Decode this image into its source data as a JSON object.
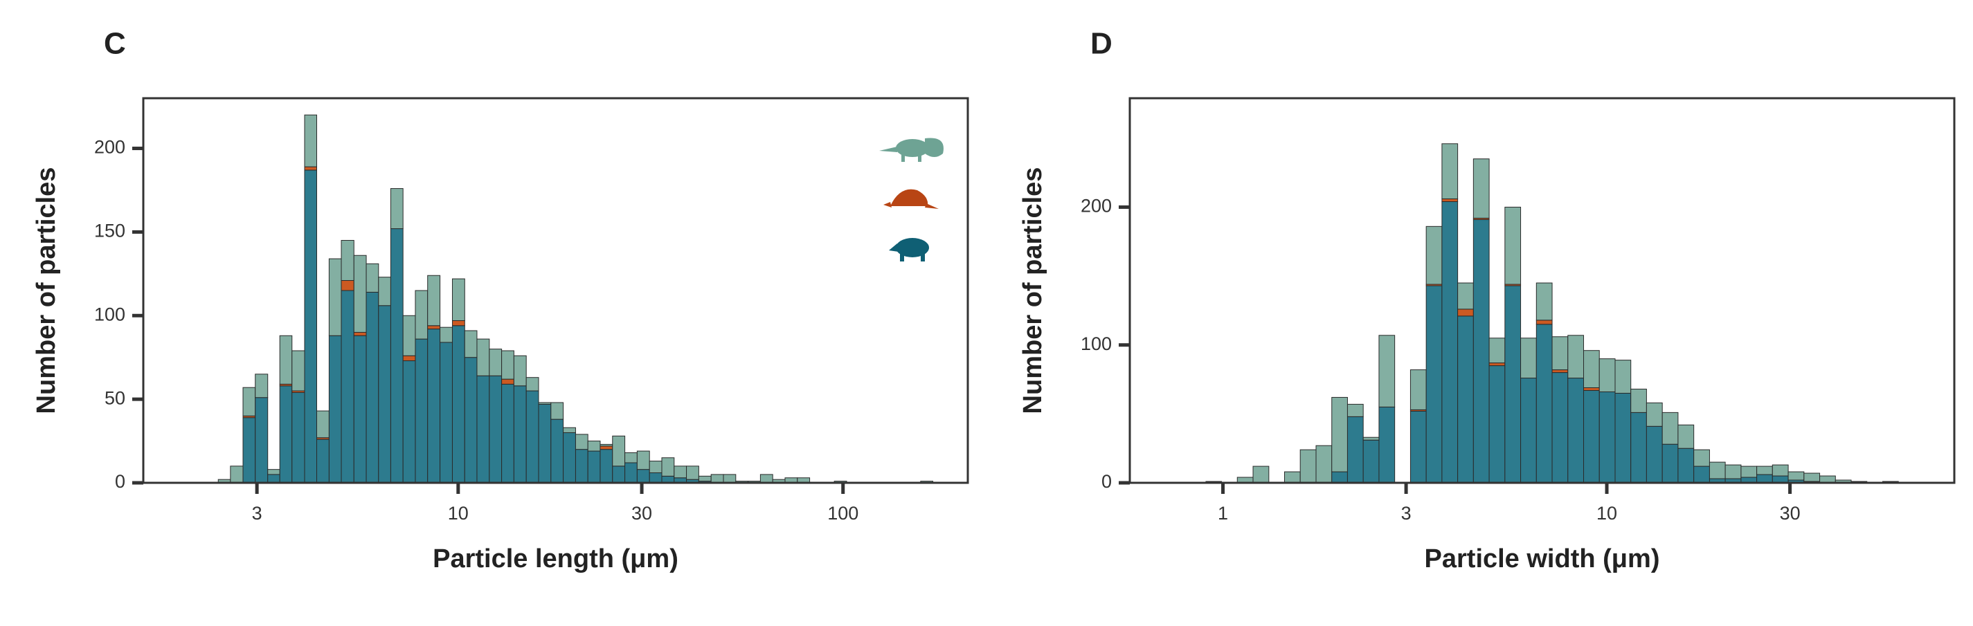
{
  "chart_data": [
    {
      "type": "histogram",
      "label": "C",
      "x_label": "Particle length (μm)",
      "y_label": "Number of particles",
      "log_x": true,
      "xlim": [
        1.52,
        211
      ],
      "ylim": [
        0,
        230
      ],
      "xticks": [
        3,
        10,
        30,
        100
      ],
      "yticks": [
        0,
        50,
        100,
        150,
        200
      ],
      "bins": [
        2.38,
        2.56,
        2.76,
        2.97,
        3.2,
        3.44,
        3.7,
        3.99,
        4.29,
        4.62,
        4.97,
        5.36,
        5.77,
        6.21,
        6.68,
        7.19,
        7.74,
        8.33,
        8.97,
        9.66,
        10.4,
        11.19,
        12.05,
        12.97,
        13.96,
        15.03,
        16.18,
        17.42,
        18.75,
        20.19,
        21.73,
        23.39,
        25.18,
        27.11,
        29.18,
        31.42,
        33.82,
        36.41,
        39.19,
        42.19,
        45.42,
        48.9,
        52.64,
        56.66,
        61.0,
        65.67,
        70.69,
        76.1,
        81.92,
        88.19,
        94.93,
        102.2,
        110.0,
        118.4,
        127.5,
        137.3,
        147.8,
        159.1,
        171.2
      ],
      "series": [
        {
          "color": "#2d7b8e",
          "values": [
            0,
            0,
            39,
            51,
            5,
            58,
            54,
            187,
            26,
            88,
            115,
            88,
            114,
            106,
            152,
            73,
            86,
            92,
            84,
            94,
            75,
            64,
            64,
            59,
            58,
            55,
            47,
            38,
            30,
            20,
            19,
            20,
            10,
            12,
            8,
            6,
            4,
            3,
            2,
            1,
            0,
            0,
            0,
            0,
            0,
            0,
            0,
            0,
            0,
            0,
            0,
            0,
            0,
            0,
            0,
            0,
            0,
            0
          ]
        },
        {
          "color": "#cc5a22",
          "values": [
            0,
            0,
            1,
            0,
            0,
            1,
            1,
            2,
            1,
            0,
            6,
            2,
            0,
            0,
            0,
            3,
            0,
            2,
            0,
            3,
            0,
            0,
            0,
            3,
            0,
            0,
            0,
            0,
            0,
            0,
            0,
            2,
            0,
            0,
            0,
            0,
            0,
            0,
            0,
            0,
            0,
            0,
            0,
            0,
            0,
            0,
            0,
            0,
            0,
            0,
            0,
            0,
            0,
            0,
            0,
            0,
            0,
            0
          ]
        },
        {
          "color": "#83afa2",
          "values": [
            2,
            10,
            17,
            14,
            3,
            29,
            24,
            31,
            16,
            46,
            24,
            46,
            17,
            17,
            24,
            24,
            29,
            30,
            9,
            25,
            16,
            22,
            16,
            17,
            18,
            8,
            1,
            10,
            3,
            9,
            6,
            1,
            18,
            6,
            11,
            7,
            11,
            7,
            8,
            3,
            5,
            5,
            1,
            1,
            5,
            2,
            3,
            3,
            0,
            0,
            1,
            0,
            0,
            0,
            0,
            0,
            0,
            1
          ]
        }
      ]
    },
    {
      "type": "histogram",
      "label": "D",
      "x_label": "Particle width (μm)",
      "y_label": "Number of particles",
      "log_x": true,
      "xlim": [
        0.572,
        80.4
      ],
      "ylim": [
        0,
        279
      ],
      "xticks": [
        1,
        3,
        10,
        30
      ],
      "yticks": [
        0,
        100,
        200
      ],
      "bins": [
        0.903,
        0.992,
        1.09,
        1.198,
        1.317,
        1.447,
        1.59,
        1.748,
        1.921,
        2.111,
        2.32,
        2.55,
        2.802,
        3.08,
        3.385,
        3.72,
        4.088,
        4.493,
        4.938,
        5.427,
        5.964,
        6.555,
        7.204,
        7.917,
        8.701,
        9.562,
        10.51,
        11.55,
        12.69,
        13.95,
        15.33,
        16.85,
        18.52,
        20.35,
        22.37,
        24.58,
        27.01,
        29.69,
        32.63,
        35.86,
        39.41,
        43.31,
        47.6,
        52.31,
        57.49
      ],
      "series": [
        {
          "color": "#2d7b8e",
          "values": [
            0,
            0,
            0,
            0,
            0,
            0,
            0,
            0,
            8,
            48,
            31,
            55,
            0,
            52,
            143,
            204,
            121,
            191,
            85,
            143,
            76,
            115,
            80,
            76,
            67,
            66,
            65,
            51,
            41,
            28,
            25,
            12,
            3,
            3,
            4,
            6,
            5,
            2,
            1,
            0,
            0,
            0,
            0,
            0
          ]
        },
        {
          "color": "#cc5a22",
          "values": [
            0,
            0,
            0,
            0,
            0,
            0,
            0,
            0,
            0,
            0,
            0,
            0,
            0,
            1,
            1,
            2,
            5,
            1,
            2,
            1,
            0,
            3,
            2,
            0,
            2,
            0,
            0,
            0,
            0,
            0,
            0,
            0,
            0,
            0,
            0,
            0,
            0,
            0,
            0,
            0,
            0,
            0,
            0,
            0
          ]
        },
        {
          "color": "#83afa2",
          "values": [
            1,
            0,
            4,
            12,
            0,
            8,
            24,
            27,
            54,
            9,
            2,
            52,
            0,
            29,
            42,
            40,
            19,
            43,
            18,
            56,
            29,
            27,
            24,
            31,
            27,
            24,
            24,
            17,
            17,
            23,
            17,
            12,
            12,
            10,
            8,
            6,
            8,
            6,
            6,
            5,
            2,
            1,
            0,
            1
          ]
        }
      ]
    }
  ]
}
